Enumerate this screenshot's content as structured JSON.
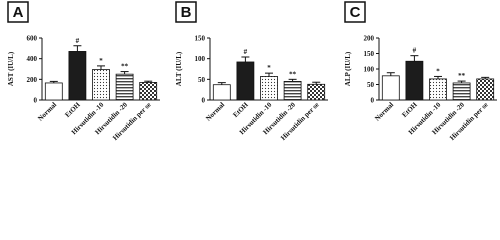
{
  "chart_data": [
    {
      "type": "bar",
      "panel": "A",
      "ylabel": "AST (IU/L)",
      "categories": [
        "Normal",
        "EtOH",
        "Hirsutidin -10",
        "Hirsutidin -20",
        "Hirsutidin per se"
      ],
      "values": [
        165,
        470,
        295,
        250,
        170
      ],
      "errors": [
        15,
        55,
        35,
        25,
        12
      ],
      "annotations": [
        null,
        "#",
        "*",
        "**",
        null
      ],
      "patterns": [
        "white",
        "black",
        "dots",
        "stripes",
        "checks"
      ],
      "ylim": [
        0,
        600
      ],
      "yticks": [
        0,
        200,
        400,
        600
      ]
    },
    {
      "type": "bar",
      "panel": "B",
      "ylabel": "ALT (IU/L)",
      "categories": [
        "Normal",
        "EtOH",
        "Hirsutidin -10",
        "Hirsutidin -20",
        "Hirsutidin per se"
      ],
      "values": [
        37,
        92,
        57,
        45,
        38
      ],
      "errors": [
        5,
        12,
        8,
        5,
        5
      ],
      "annotations": [
        null,
        "#",
        "*",
        "**",
        null
      ],
      "patterns": [
        "white",
        "black",
        "dots",
        "stripes",
        "checks"
      ],
      "ylim": [
        0,
        150
      ],
      "yticks": [
        0,
        50,
        100,
        150
      ]
    },
    {
      "type": "bar",
      "panel": "C",
      "ylabel": "ALP (IU/L)",
      "categories": [
        "Normal",
        "EtOH",
        "Hirsutidin -10",
        "Hirsutidin -20",
        "Hirsutidin per se"
      ],
      "values": [
        78,
        125,
        68,
        55,
        68
      ],
      "errors": [
        10,
        18,
        8,
        6,
        5
      ],
      "annotations": [
        null,
        "#",
        "*",
        "**",
        null
      ],
      "patterns": [
        "white",
        "black",
        "dots",
        "stripes",
        "checks"
      ],
      "ylim": [
        0,
        200
      ],
      "yticks": [
        0,
        50,
        100,
        150,
        200
      ]
    }
  ]
}
